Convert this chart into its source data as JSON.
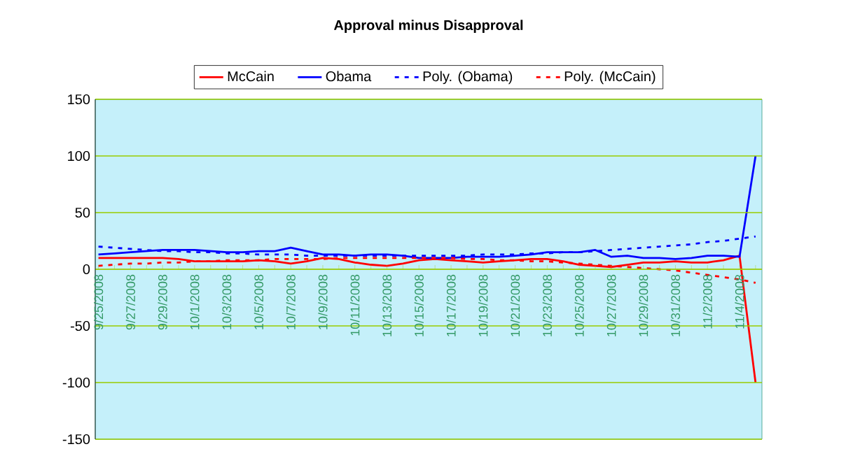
{
  "chart_data": {
    "type": "line",
    "title": "Approval minus Disapproval",
    "categories": [
      "9/25/2008",
      null,
      "9/27/2008",
      null,
      "9/29/2008",
      null,
      "10/1/2008",
      null,
      "10/3/2008",
      null,
      "10/5/2008",
      null,
      "10/7/2008",
      null,
      "10/9/2008",
      null,
      "10/11/2008",
      null,
      "10/13/2008",
      null,
      "10/15/2008",
      null,
      "10/17/2008",
      null,
      "10/19/2008",
      null,
      "10/21/2008",
      null,
      "10/23/2008",
      null,
      "10/25/2008",
      null,
      "10/27/2008",
      null,
      "10/29/2008",
      null,
      "10/31/2008",
      null,
      "11/2/2008",
      null,
      "11/4/2008",
      null
    ],
    "series": [
      {
        "name": "McCain",
        "color": "#ff0000",
        "line_style": "solid",
        "values": [
          10,
          10,
          10,
          10,
          10,
          9,
          7,
          7,
          7,
          7,
          8,
          7,
          5,
          7,
          10,
          9,
          6,
          4,
          3,
          5,
          8,
          9,
          8,
          7,
          6,
          7,
          8,
          9,
          9,
          7,
          4,
          3,
          2,
          4,
          6,
          6,
          7,
          6,
          6,
          8,
          12,
          -100
        ]
      },
      {
        "name": "Obama",
        "color": "#0000ff",
        "line_style": "solid",
        "values": [
          13,
          14,
          15,
          16,
          17,
          17,
          17,
          16,
          15,
          15,
          16,
          16,
          19,
          16,
          13,
          13,
          12,
          13,
          13,
          12,
          10,
          10,
          10,
          11,
          11,
          11,
          12,
          13,
          15,
          15,
          15,
          17,
          11,
          12,
          10,
          10,
          9,
          10,
          12,
          12,
          11,
          100
        ]
      },
      {
        "name": "Poly. (Obama)",
        "color": "#0000ff",
        "line_style": "dashed",
        "values": [
          20,
          19,
          18,
          17,
          16,
          16,
          15,
          15,
          14,
          14,
          13,
          13,
          13,
          12,
          12,
          12,
          12,
          12,
          12,
          12,
          12,
          12,
          12,
          12,
          13,
          13,
          13,
          14,
          14,
          15,
          15,
          16,
          17,
          18,
          19,
          20,
          21,
          22,
          24,
          25,
          27,
          29
        ]
      },
      {
        "name": "Poly. (McCain)",
        "color": "#ff0000",
        "line_style": "dashed",
        "values": [
          3,
          4,
          5,
          5,
          6,
          6,
          7,
          7,
          8,
          8,
          8,
          9,
          9,
          9,
          9,
          10,
          10,
          10,
          10,
          10,
          10,
          10,
          10,
          9,
          9,
          8,
          8,
          7,
          7,
          6,
          5,
          4,
          3,
          2,
          1,
          0,
          -1,
          -3,
          -5,
          -7,
          -9,
          -12
        ]
      }
    ],
    "ylim": [
      -150,
      150
    ],
    "yticks": [
      -150,
      -100,
      -50,
      0,
      50,
      100,
      150
    ],
    "grid": "y",
    "legend": "top"
  }
}
